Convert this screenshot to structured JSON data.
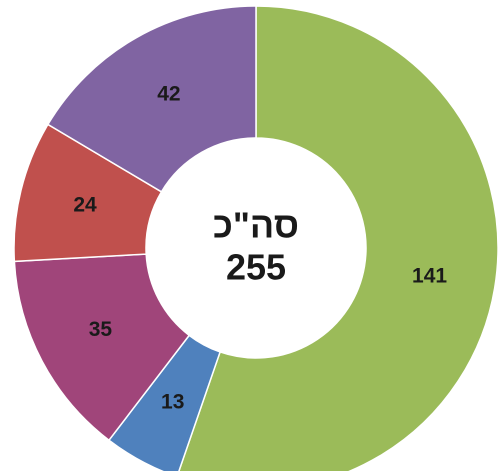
{
  "chart_data": {
    "type": "donut",
    "categories": [
      null,
      null,
      null,
      null,
      null
    ],
    "values": [
      141,
      13,
      35,
      24,
      42
    ],
    "colors": [
      "#9bbb59",
      "#4f81bd",
      "#a0457a",
      "#c0504d",
      "#8064a2"
    ],
    "center_label": "סה\"כ",
    "total": 255
  }
}
